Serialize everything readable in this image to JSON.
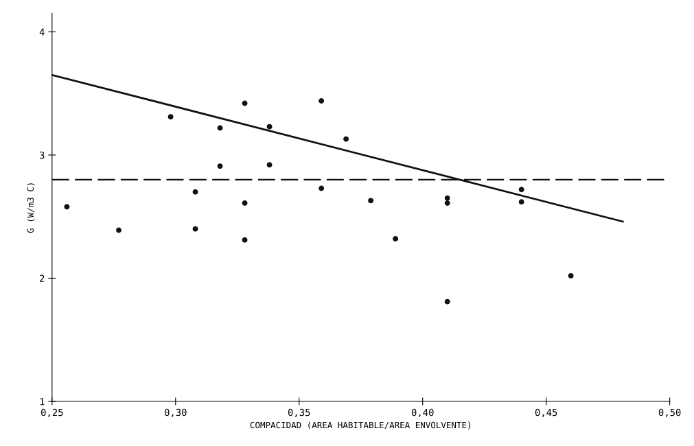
{
  "chart_data": {
    "type": "scatter",
    "xlabel": "COMPACIDAD (AREA HABITABLE/AREA ENVOLVENTE)",
    "ylabel": "G (W/m3 C)",
    "xlim": [
      0.25,
      0.5
    ],
    "ylim": [
      1,
      4.15
    ],
    "xticks": [
      {
        "value": 0.25,
        "label": "0,25"
      },
      {
        "value": 0.3,
        "label": "0,30"
      },
      {
        "value": 0.35,
        "label": "0,35"
      },
      {
        "value": 0.4,
        "label": "0,40"
      },
      {
        "value": 0.45,
        "label": "0,45"
      },
      {
        "value": 0.5,
        "label": "0,50"
      }
    ],
    "yticks": [
      1,
      2,
      3,
      4
    ],
    "grid": false,
    "series": [
      {
        "color": "#111111",
        "marker": "circle",
        "x": [
          0.256,
          0.277,
          0.298,
          0.308,
          0.308,
          0.318,
          0.318,
          0.328,
          0.328,
          0.328,
          0.338,
          0.338,
          0.359,
          0.359,
          0.369,
          0.379,
          0.389,
          0.41,
          0.41,
          0.41,
          0.44,
          0.44,
          0.46
        ],
        "values": [
          2.58,
          2.39,
          3.31,
          2.7,
          2.4,
          3.22,
          2.91,
          3.42,
          2.61,
          2.31,
          3.23,
          2.92,
          3.44,
          2.73,
          3.13,
          2.63,
          2.32,
          2.65,
          2.61,
          1.81,
          2.72,
          2.62,
          2.02
        ]
      },
      {
        "type": "line",
        "color": "#111111",
        "marker": "none",
        "line_style": "solid",
        "x": [
          0.25,
          0.481
        ],
        "values": [
          3.65,
          2.46
        ]
      }
    ],
    "ref_lines": [
      {
        "axis": "y",
        "value": 2.8,
        "color": "#111111",
        "line_style": "dashed"
      }
    ]
  }
}
